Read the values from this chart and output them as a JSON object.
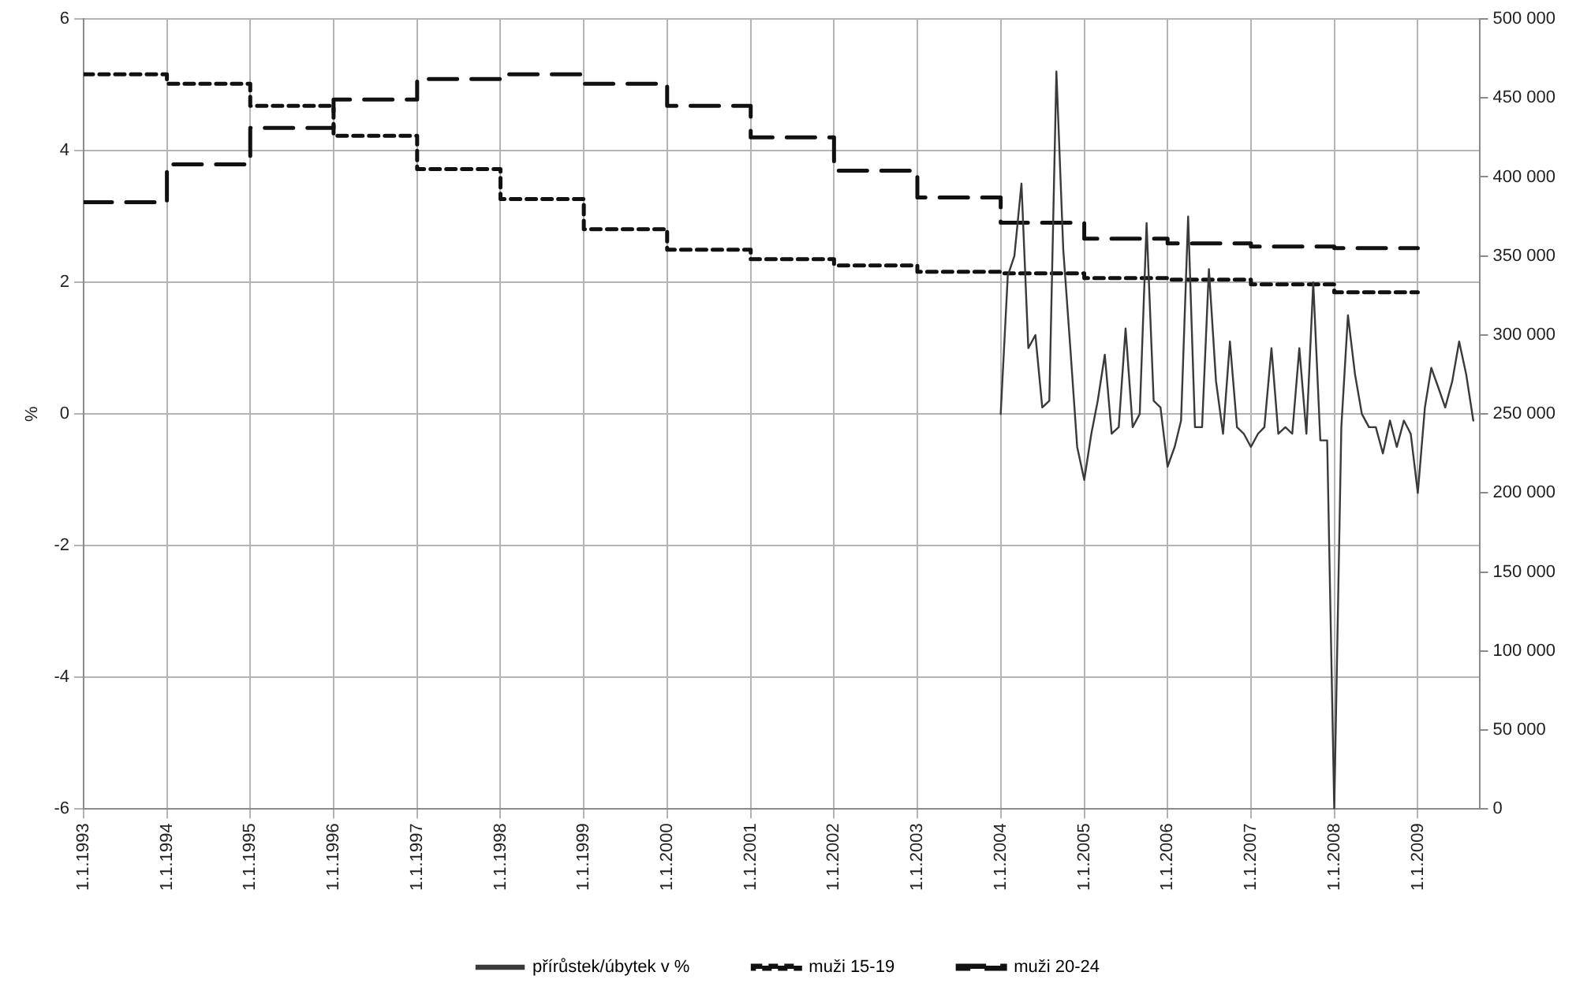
{
  "chart_data": {
    "type": "line",
    "ylabel": "%",
    "xlim": [
      "1993-01-01",
      "2009-10-01"
    ],
    "xticks": [
      {
        "value": "1993-01-01",
        "label": "1.1.1993"
      },
      {
        "value": "1994-01-01",
        "label": "1.1.1994"
      },
      {
        "value": "1995-01-01",
        "label": "1.1.1995"
      },
      {
        "value": "1996-01-01",
        "label": "1.1.1996"
      },
      {
        "value": "1997-01-01",
        "label": "1.1.1997"
      },
      {
        "value": "1998-01-01",
        "label": "1.1.1998"
      },
      {
        "value": "1999-01-01",
        "label": "1.1.1999"
      },
      {
        "value": "2000-01-01",
        "label": "1.1.2000"
      },
      {
        "value": "2001-01-01",
        "label": "1.1.2001"
      },
      {
        "value": "2002-01-01",
        "label": "1.1.2002"
      },
      {
        "value": "2003-01-01",
        "label": "1.1.2003"
      },
      {
        "value": "2004-01-01",
        "label": "1.1.2004"
      },
      {
        "value": "2005-01-01",
        "label": "1.1.2005"
      },
      {
        "value": "2006-01-01",
        "label": "1.1.2006"
      },
      {
        "value": "2007-01-01",
        "label": "1.1.2007"
      },
      {
        "value": "2008-01-01",
        "label": "1.1.2008"
      },
      {
        "value": "2009-01-01",
        "label": "1.1.2009"
      }
    ],
    "ylim": [
      -6,
      6
    ],
    "yticks": [
      -6,
      -4,
      -2,
      0,
      2,
      4,
      6
    ],
    "y2lim": [
      0,
      500000
    ],
    "y2ticks": [
      {
        "value": 0,
        "label": "0"
      },
      {
        "value": 50000,
        "label": "50 000"
      },
      {
        "value": 100000,
        "label": "100 000"
      },
      {
        "value": 150000,
        "label": "150 000"
      },
      {
        "value": 200000,
        "label": "200 000"
      },
      {
        "value": 250000,
        "label": "250 000"
      },
      {
        "value": 300000,
        "label": "300 000"
      },
      {
        "value": 350000,
        "label": "350 000"
      },
      {
        "value": 400000,
        "label": "400 000"
      },
      {
        "value": 450000,
        "label": "450 000"
      },
      {
        "value": 500000,
        "label": "500 000"
      }
    ],
    "grid": true,
    "legend": "bottom",
    "marker": "none",
    "series": [
      {
        "name": "přírůstek/úbytek v %",
        "type": "line",
        "color": "#3a3a3a",
        "line_style": "solid",
        "x": [
          "2004-01",
          "2004-02",
          "2004-03",
          "2004-04",
          "2004-05",
          "2004-06",
          "2004-07",
          "2004-08",
          "2004-09",
          "2004-10",
          "2004-11",
          "2004-12",
          "2005-01",
          "2005-02",
          "2005-03",
          "2005-04",
          "2005-05",
          "2005-06",
          "2005-07",
          "2005-08",
          "2005-09",
          "2005-10",
          "2005-11",
          "2005-12",
          "2006-01",
          "2006-02",
          "2006-03",
          "2006-04",
          "2006-05",
          "2006-06",
          "2006-07",
          "2006-08",
          "2006-09",
          "2006-10",
          "2006-11",
          "2006-12",
          "2007-01",
          "2007-02",
          "2007-03",
          "2007-04",
          "2007-05",
          "2007-06",
          "2007-07",
          "2007-08",
          "2007-09",
          "2007-10",
          "2007-11",
          "2007-12",
          "2008-01",
          "2008-02",
          "2008-03",
          "2008-04",
          "2008-05",
          "2008-06",
          "2008-07",
          "2008-08",
          "2008-09",
          "2008-10",
          "2008-11",
          "2008-12",
          "2009-01",
          "2009-02",
          "2009-03",
          "2009-04",
          "2009-05",
          "2009-06",
          "2009-07",
          "2009-08",
          "2009-09"
        ],
        "values": [
          0,
          2.1,
          2.4,
          3.5,
          1.0,
          1.2,
          0.1,
          0.2,
          5.2,
          2.5,
          1.0,
          -0.5,
          -1.0,
          -0.3,
          0.2,
          0.9,
          -0.3,
          -0.2,
          1.3,
          -0.2,
          0.0,
          2.9,
          0.2,
          0.1,
          -0.8,
          -0.5,
          -0.1,
          3.0,
          -0.2,
          -0.2,
          2.2,
          0.5,
          -0.3,
          1.1,
          -0.2,
          -0.3,
          -0.5,
          -0.3,
          -0.2,
          1.0,
          -0.3,
          -0.2,
          -0.3,
          1.0,
          -0.3,
          2.0,
          -0.4,
          -0.4,
          -6.0,
          -0.2,
          1.5,
          0.6,
          0.0,
          -0.2,
          -0.2,
          -0.6,
          -0.1,
          -0.5,
          -0.1,
          -0.3,
          -1.2,
          0.1,
          0.7,
          0.4,
          0.1,
          0.5,
          1.1,
          0.6,
          -0.1
        ]
      },
      {
        "name": "muži 15-19",
        "type": "step",
        "axis": "y2",
        "color": "#111111",
        "line_style": "dotted",
        "x": [
          "1993",
          "1994",
          "1995",
          "1996",
          "1997",
          "1998",
          "1999",
          "2000",
          "2001",
          "2002",
          "2003",
          "2004",
          "2005",
          "2006",
          "2007",
          "2008",
          "2009"
        ],
        "values": [
          465000,
          459000,
          445000,
          426000,
          405000,
          386000,
          367000,
          354000,
          348000,
          344000,
          340000,
          339000,
          336000,
          335000,
          332000,
          327000,
          327000
        ]
      },
      {
        "name": "muži 20-24",
        "type": "step",
        "axis": "y2",
        "color": "#111111",
        "line_style": "dashed",
        "x": [
          "1993",
          "1994",
          "1995",
          "1996",
          "1997",
          "1998",
          "1999",
          "2000",
          "2001",
          "2002",
          "2003",
          "2004",
          "2005",
          "2006",
          "2007",
          "2008",
          "2009"
        ],
        "values": [
          384000,
          408000,
          431000,
          449000,
          462000,
          465000,
          459000,
          445000,
          425000,
          404000,
          387000,
          371000,
          361000,
          358000,
          356000,
          355000,
          355000
        ]
      }
    ]
  }
}
